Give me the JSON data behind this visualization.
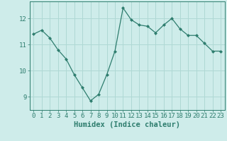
{
  "x": [
    0,
    1,
    2,
    3,
    4,
    5,
    6,
    7,
    8,
    9,
    10,
    11,
    12,
    13,
    14,
    15,
    16,
    17,
    18,
    19,
    20,
    21,
    22,
    23
  ],
  "y": [
    11.4,
    11.55,
    11.25,
    10.8,
    10.45,
    9.85,
    9.35,
    8.85,
    9.1,
    9.85,
    10.75,
    12.4,
    11.95,
    11.75,
    11.7,
    11.45,
    11.75,
    12.0,
    11.6,
    11.35,
    11.35,
    11.05,
    10.75,
    10.75
  ],
  "line_color": "#2e7d6e",
  "marker": "D",
  "marker_size": 2,
  "bg_color": "#ceecea",
  "grid_color": "#afd8d4",
  "xlabel": "Humidex (Indice chaleur)",
  "xlim": [
    -0.5,
    23.5
  ],
  "ylim": [
    8.5,
    12.65
  ],
  "yticks": [
    9,
    10,
    11,
    12
  ],
  "xticks": [
    0,
    1,
    2,
    3,
    4,
    5,
    6,
    7,
    8,
    9,
    10,
    11,
    12,
    13,
    14,
    15,
    16,
    17,
    18,
    19,
    20,
    21,
    22,
    23
  ],
  "tick_fontsize": 6.5,
  "xlabel_fontsize": 7.5
}
